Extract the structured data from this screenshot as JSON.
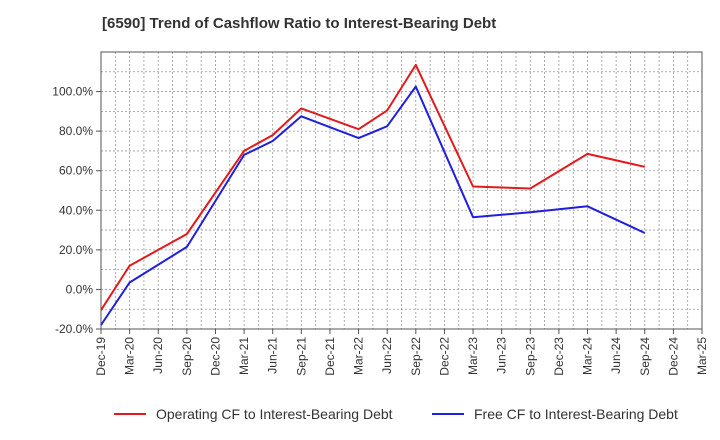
{
  "chart_data": {
    "type": "line",
    "title": "[6590]  Trend of Cashflow Ratio to Interest-Bearing Debt",
    "x": [
      "Dec-19",
      "Mar-20",
      "Jun-20",
      "Sep-20",
      "Dec-20",
      "Mar-21",
      "Jun-21",
      "Sep-21",
      "Dec-21",
      "Mar-22",
      "Jun-22",
      "Sep-22",
      "Dec-22",
      "Mar-23",
      "Jun-23",
      "Sep-23",
      "Dec-23",
      "Mar-24",
      "Jun-24",
      "Sep-24",
      "Dec-24",
      "Mar-25"
    ],
    "y_ticks": [
      "-20.0%",
      "0.0%",
      "20.0%",
      "40.0%",
      "60.0%",
      "80.0%",
      "100.0%"
    ],
    "ylim": [
      -20,
      120
    ],
    "grid": true,
    "legend_position": "bottom",
    "series": [
      {
        "name": "Operating CF to Interest-Bearing Debt",
        "color": "#e31a1c",
        "values": [
          -10.5,
          12,
          null,
          28,
          null,
          70,
          78,
          91.5,
          null,
          81,
          90.5,
          113.5,
          null,
          52,
          null,
          51,
          null,
          68.5,
          null,
          62,
          null,
          null
        ]
      },
      {
        "name": "Free CF to Interest-Bearing Debt",
        "color": "#1f1fdd",
        "values": [
          -18,
          3.5,
          null,
          21.5,
          null,
          68,
          75,
          87.5,
          null,
          76.5,
          82.5,
          102.5,
          null,
          36.5,
          null,
          39,
          null,
          42,
          null,
          28.5,
          null,
          null
        ]
      }
    ]
  }
}
